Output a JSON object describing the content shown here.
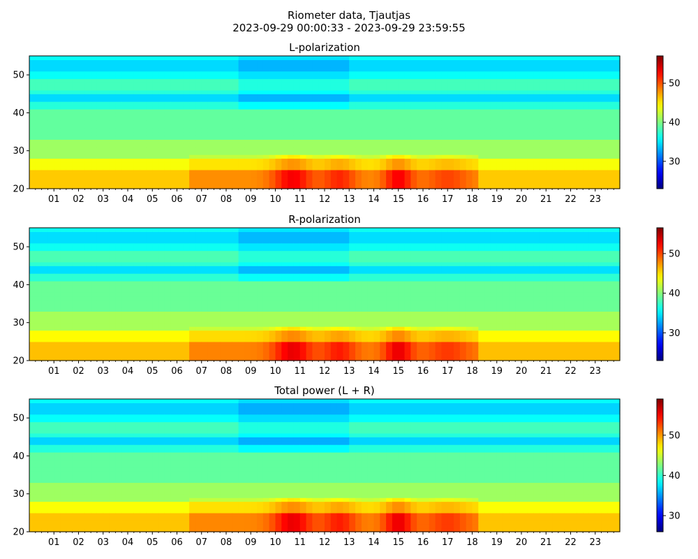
{
  "figure": {
    "title_line1": "Riometer data, Tjautjas",
    "title_line2": "2023-09-29 00:00:33 - 2023-09-29 23:59:55"
  },
  "chart_data": [
    {
      "type": "heatmap",
      "title": "L-polarization",
      "xlabel": "",
      "ylabel": "",
      "x_tick_labels": [
        "01",
        "02",
        "03",
        "04",
        "05",
        "06",
        "07",
        "08",
        "09",
        "10",
        "11",
        "12",
        "13",
        "14",
        "15",
        "16",
        "17",
        "18",
        "19",
        "20",
        "21",
        "22",
        "23"
      ],
      "y_ticks": [
        20,
        30,
        40,
        50
      ],
      "ylim": [
        20,
        55
      ],
      "xlim_hours": [
        0,
        24
      ],
      "colorbar": {
        "range": [
          23,
          57
        ],
        "ticks": [
          30,
          40,
          50
        ],
        "colormap": "jet"
      },
      "description": "Frequency/band vs time-of-day intensity; high values (~45-52) concentrated below 28 on y between 06 and 18 h, peaks near 10-11 h and 15 h; blue bands near 43-44 and 51-53."
    },
    {
      "type": "heatmap",
      "title": "R-polarization",
      "xlabel": "",
      "ylabel": "",
      "x_tick_labels": [
        "01",
        "02",
        "03",
        "04",
        "05",
        "06",
        "07",
        "08",
        "09",
        "10",
        "11",
        "12",
        "13",
        "14",
        "15",
        "16",
        "17",
        "18",
        "19",
        "20",
        "21",
        "22",
        "23"
      ],
      "y_ticks": [
        20,
        30,
        40,
        50
      ],
      "ylim": [
        20,
        55
      ],
      "xlim_hours": [
        0,
        24
      ],
      "colorbar": {
        "range": [
          23,
          56.5
        ],
        "ticks": [
          30,
          40,
          50
        ],
        "colormap": "jet"
      }
    },
    {
      "type": "heatmap",
      "title": "Total power (L + R)",
      "xlabel": "",
      "ylabel": "",
      "x_tick_labels": [
        "01",
        "02",
        "03",
        "04",
        "05",
        "06",
        "07",
        "08",
        "09",
        "10",
        "11",
        "12",
        "13",
        "14",
        "15",
        "16",
        "17",
        "18",
        "19",
        "20",
        "21",
        "22",
        "23"
      ],
      "y_ticks": [
        20,
        30,
        40,
        50
      ],
      "ylim": [
        20,
        55
      ],
      "xlim_hours": [
        0,
        24
      ],
      "colorbar": {
        "range": [
          26,
          59
        ],
        "ticks": [
          30,
          40,
          50
        ],
        "colormap": "jet"
      }
    }
  ]
}
